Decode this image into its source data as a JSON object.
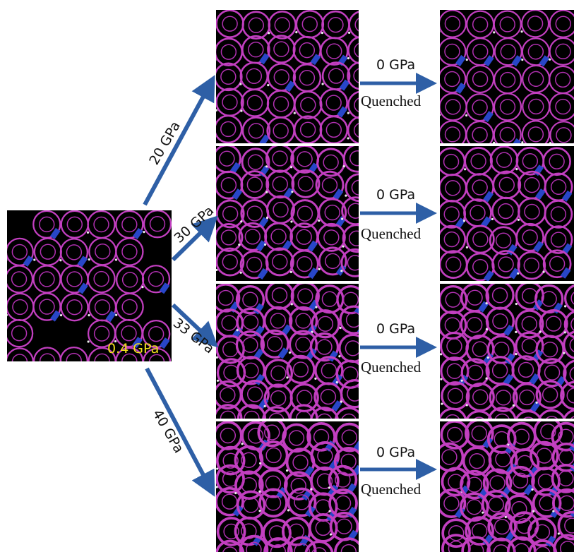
{
  "source": {
    "label": "0.4 GPa"
  },
  "branches": [
    {
      "pressure": "20 GPa",
      "release": "0 GPa",
      "process": "Quenched"
    },
    {
      "pressure": "30 GPa",
      "release": "0 GPa",
      "process": "Quenched"
    },
    {
      "pressure": "33 GPa",
      "release": "0 GPa",
      "process": "Quenched"
    },
    {
      "pressure": "40 GPa",
      "release": "0 GPa",
      "process": "Quenched"
    }
  ]
}
